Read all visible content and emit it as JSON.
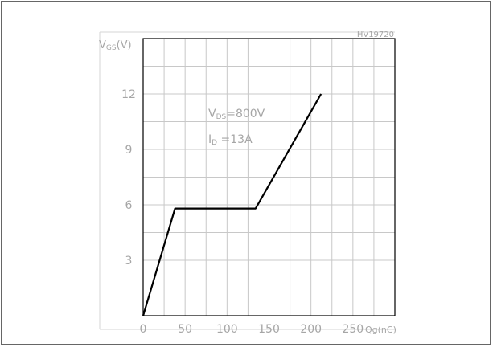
{
  "chart_data": {
    "type": "line",
    "code": "HV19720",
    "ylabel": "VGS (V)",
    "ylabel_main": "V",
    "ylabel_sub": "GS",
    "ylabel_unit": "(V)",
    "xlabel": "Qg(nC)",
    "x_ticks": [
      "0",
      "50",
      "100",
      "150",
      "200",
      "250"
    ],
    "y_ticks": [
      "3",
      "6",
      "9",
      "12"
    ],
    "xlim": [
      0,
      300
    ],
    "ylim": [
      0,
      15
    ],
    "grid": true,
    "annotations": {
      "vds": {
        "main": "V",
        "sub": "DS",
        "rest": "=800V"
      },
      "id": {
        "main": "I",
        "sub": "D",
        "rest": " =13A"
      }
    },
    "series": [
      {
        "x": [
          0,
          38,
          134,
          212
        ],
        "y": [
          0,
          5.8,
          5.8,
          12
        ],
        "color": "#000000"
      }
    ]
  }
}
